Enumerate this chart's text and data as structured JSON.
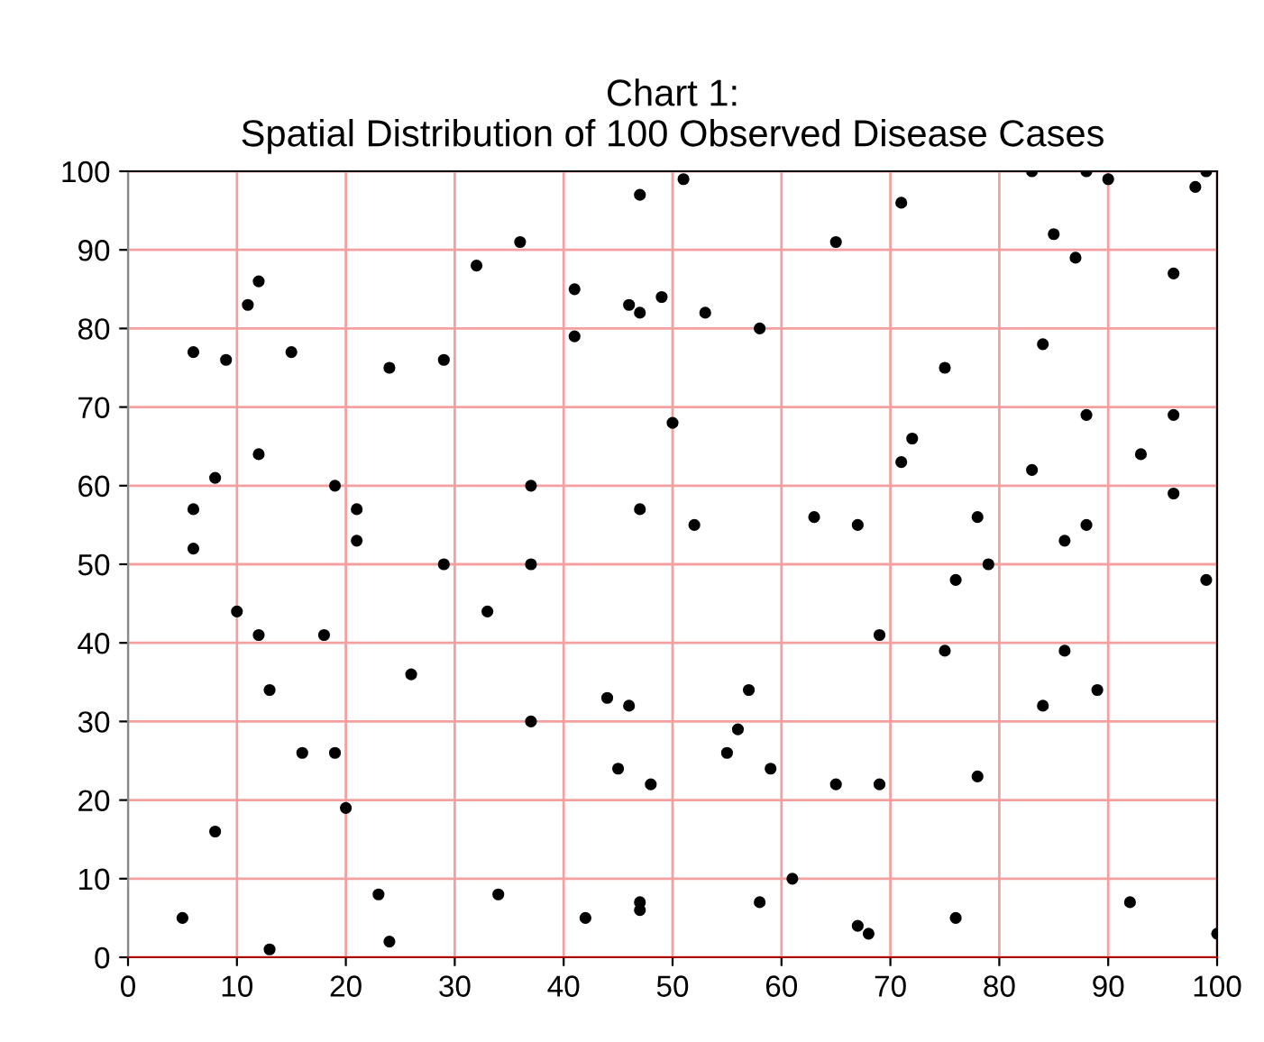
{
  "chart_data": {
    "type": "scatter",
    "title": "Chart 1:\nSpatial Distribution of 100 Observed Disease Cases",
    "series": [
      {
        "color": "#000000",
        "x": [
          5,
          6,
          6,
          6,
          8,
          8,
          9,
          10,
          11,
          12,
          12,
          12,
          13,
          13,
          15,
          16,
          18,
          19,
          19,
          20,
          21,
          21,
          23,
          24,
          24,
          26,
          29,
          29,
          32,
          33,
          34,
          36,
          37,
          37,
          37,
          41,
          41,
          42,
          44,
          45,
          46,
          46,
          47,
          47,
          47,
          47,
          47,
          48,
          49,
          50,
          51,
          52,
          53,
          55,
          56,
          57,
          58,
          58,
          59,
          61,
          63,
          65,
          65,
          67,
          67,
          68,
          69,
          69,
          71,
          71,
          72,
          75,
          75,
          76,
          76,
          78,
          78,
          79,
          83,
          83,
          84,
          84,
          85,
          86,
          86,
          87,
          88,
          88,
          88,
          89,
          90,
          92,
          93,
          96,
          96,
          96,
          98,
          99,
          99,
          100
        ],
        "values": [
          5,
          77,
          57,
          52,
          61,
          16,
          76,
          44,
          83,
          86,
          64,
          41,
          34,
          1,
          77,
          26,
          41,
          60,
          26,
          19,
          57,
          53,
          8,
          75,
          2,
          36,
          76,
          50,
          88,
          44,
          8,
          91,
          60,
          50,
          30,
          85,
          79,
          5,
          33,
          24,
          83,
          32,
          97,
          82,
          57,
          7,
          6,
          22,
          84,
          68,
          99,
          55,
          82,
          26,
          29,
          34,
          80,
          7,
          24,
          10,
          56,
          91,
          22,
          55,
          4,
          3,
          41,
          22,
          96,
          63,
          66,
          75,
          39,
          48,
          5,
          56,
          23,
          50,
          100,
          62,
          78,
          32,
          92,
          53,
          39,
          89,
          100,
          69,
          55,
          34,
          99,
          7,
          64,
          87,
          69,
          59,
          98,
          48,
          100,
          3
        ]
      }
    ],
    "xlim": [
      0,
      100
    ],
    "ylim": [
      0,
      100
    ],
    "xticks": [
      0,
      10,
      20,
      30,
      40,
      50,
      60,
      70,
      80,
      90,
      100
    ],
    "yticks": [
      0,
      10,
      20,
      30,
      40,
      50,
      60,
      70,
      80,
      90,
      100
    ],
    "grid": true,
    "marker": "circle"
  }
}
